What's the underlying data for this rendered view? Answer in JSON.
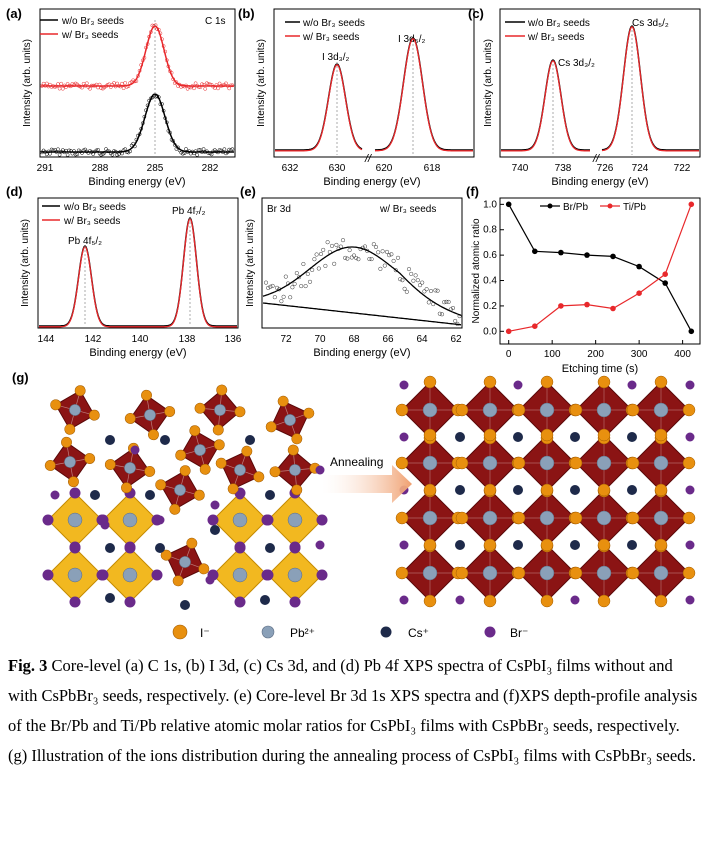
{
  "panels": {
    "a": {
      "letter": "(a)",
      "legend": [
        "w/o Br₃ seeds",
        "w/  Br₃ seeds"
      ],
      "label": "C 1s",
      "xticks": [
        "291",
        "288",
        "285",
        "282"
      ],
      "xlabel": "Binding energy (eV)",
      "ylabel": "Intensity (arb. units)"
    },
    "b": {
      "letter": "(b)",
      "legend": [
        "w/o Br₃ seeds",
        "w/  Br₃ seeds"
      ],
      "peak1": "I 3d₃/₂",
      "peak2": "I 3d₅/₂",
      "xticks": [
        "632",
        "630",
        "620",
        "618"
      ],
      "xlabel": "Binding energy (eV)",
      "ylabel": "Intensity (arb. units)"
    },
    "c": {
      "letter": "(c)",
      "legend": [
        "w/o Br₃ seeds",
        "w/  Br₃ seeds"
      ],
      "peak1": "Cs 3d₃/₂",
      "peak2": "Cs 3d₅/₂",
      "xticks": [
        "740",
        "738",
        "726",
        "724",
        "722"
      ],
      "xlabel": "Binding energy (eV)",
      "ylabel": "Intensity (arb. units)"
    },
    "d": {
      "letter": "(d)",
      "legend": [
        "w/o Br₃ seeds",
        "w/  Br₃ seeds"
      ],
      "peak1": "Pb 4f₅/₂",
      "peak2": "Pb 4f₇/₂",
      "xticks": [
        "144",
        "142",
        "140",
        "138",
        "136"
      ],
      "xlabel": "Binding energy (eV)",
      "ylabel": "Intensity (arb. units)"
    },
    "e": {
      "letter": "(e)",
      "label": "Br 3d",
      "legend": "w/ Br₃ seeds",
      "xticks": [
        "72",
        "70",
        "68",
        "66",
        "64",
        "62"
      ],
      "xlabel": "Binding energy (eV)",
      "ylabel": "Intensity (arb. units)"
    },
    "f": {
      "letter": "(f)",
      "legend": [
        "Br/Pb",
        "Ti/Pb"
      ],
      "xticks": [
        "0",
        "100",
        "200",
        "300",
        "400"
      ],
      "yticks": [
        "0.0",
        "0.2",
        "0.4",
        "0.6",
        "0.8",
        "1.0"
      ],
      "xlabel": "Etching time (s)",
      "ylabel": "Normalized atomic ratio"
    },
    "g": {
      "letter": "(g)",
      "arrow_label": "Annealing",
      "legend": [
        {
          "label": "I⁻"
        },
        {
          "label": "Pb²⁺"
        },
        {
          "label": "Cs⁺"
        },
        {
          "label": "Br⁻"
        }
      ]
    }
  },
  "chart_data": [
    {
      "panel": "f",
      "type": "line",
      "x": [
        0,
        60,
        120,
        180,
        240,
        300,
        360,
        420
      ],
      "series": [
        {
          "name": "Br/Pb",
          "values": [
            1.0,
            0.63,
            0.62,
            0.6,
            0.59,
            0.51,
            0.38,
            0.0
          ]
        },
        {
          "name": "Ti/Pb",
          "values": [
            0.0,
            0.04,
            0.2,
            0.21,
            0.18,
            0.3,
            0.45,
            1.0
          ]
        }
      ],
      "xlabel": "Etching time (s)",
      "ylabel": "Normalized atomic ratio",
      "xlim": [
        -20,
        440
      ],
      "ylim": [
        -0.1,
        1.05
      ]
    }
  ],
  "caption": {
    "fig_label": "Fig. 3",
    "text": "Core-level (a) C 1s, (b) I 3d, (c) Cs 3d, and (d) Pb 4f XPS spectra of CsPbI₃ films without and with CsPbBr₃ seeds, respectively. (e) Core-level Br 3d 1s XPS spectra and (f)XPS depth-profile analysis of the Br/Pb and Ti/Pb relative atomic molar ratios for CsPbI₃ films with CsPbBr₃ seeds, respectively. (g) Illustration of the ions distribution during the annealing process of CsPbI₃ films with CsPbBr₃ seeds."
  },
  "colors": {
    "black_series": "#000000",
    "red_series": "#e8282b",
    "octa_dark": "#8b1414",
    "octa_yellow": "#f2b820",
    "iodide": "#e8900f",
    "lead": "#8aa0b8",
    "cesium": "#1e2a4a",
    "bromide": "#6a2a8a",
    "arrow": "#f0a070"
  }
}
